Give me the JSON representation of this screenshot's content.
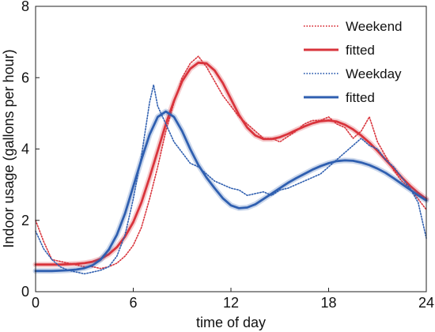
{
  "chart_data": {
    "type": "line",
    "xlabel": "time of day",
    "ylabel": "Indoor usage (gallons per hour)",
    "xlim": [
      0,
      24
    ],
    "ylim": [
      0,
      8
    ],
    "xticks": [
      0,
      6,
      12,
      18,
      24
    ],
    "yticks": [
      0,
      2,
      4,
      6,
      8
    ],
    "xtick_labels": [
      "0",
      "6",
      "12",
      "18",
      "24"
    ],
    "ytick_labels": [
      "0",
      "2",
      "4",
      "6",
      "8"
    ],
    "grid": false,
    "legend": {
      "placement": "top-right",
      "entries": [
        {
          "label": "Weekend",
          "color": "#d9343c",
          "style": "dotted"
        },
        {
          "label": "fitted",
          "color": "#d9343c",
          "style": "solid"
        },
        {
          "label": "Weekday",
          "color": "#2f5fb0",
          "style": "dotted"
        },
        {
          "label": "fitted",
          "color": "#2f5fb0",
          "style": "solid"
        }
      ]
    },
    "series": [
      {
        "name": "Weekend",
        "style": "dotted",
        "color": "#d9343c",
        "x": [
          0,
          0.5,
          1,
          1.5,
          2,
          2.5,
          3,
          3.5,
          4,
          4.5,
          5,
          5.5,
          6,
          6.5,
          7,
          7.5,
          8,
          8.5,
          9,
          9.5,
          10,
          10.5,
          11,
          11.5,
          12,
          12.5,
          13,
          13.5,
          14,
          14.5,
          15,
          15.5,
          16,
          16.5,
          17,
          17.5,
          18,
          18.5,
          19,
          19.5,
          20,
          20.5,
          21,
          21.5,
          22,
          22.5,
          23,
          23.5,
          24
        ],
        "y": [
          2.0,
          1.4,
          0.9,
          0.85,
          0.8,
          0.75,
          0.7,
          0.7,
          0.65,
          0.7,
          0.8,
          1.0,
          1.3,
          1.8,
          2.6,
          3.5,
          4.5,
          5.3,
          6.0,
          6.4,
          6.6,
          6.3,
          5.9,
          5.5,
          5.2,
          4.9,
          4.7,
          4.5,
          4.3,
          4.3,
          4.2,
          4.35,
          4.5,
          4.7,
          4.8,
          4.8,
          4.9,
          4.7,
          4.6,
          4.3,
          4.5,
          4.9,
          4.2,
          3.8,
          3.4,
          3.1,
          2.9,
          2.6,
          2.3
        ]
      },
      {
        "name": "fitted",
        "style": "solid",
        "color": "#d9343c",
        "x": [
          0,
          0.5,
          1,
          1.5,
          2,
          2.5,
          3,
          3.5,
          4,
          4.5,
          5,
          5.5,
          6,
          6.5,
          7,
          7.5,
          8,
          8.5,
          9,
          9.5,
          10,
          10.5,
          11,
          11.5,
          12,
          12.5,
          13,
          13.5,
          14,
          14.5,
          15,
          15.5,
          16,
          16.5,
          17,
          17.5,
          18,
          18.5,
          19,
          19.5,
          20,
          20.5,
          21,
          21.5,
          22,
          22.5,
          23,
          23.5,
          24
        ],
        "y": [
          0.76,
          0.76,
          0.76,
          0.76,
          0.77,
          0.78,
          0.8,
          0.84,
          0.92,
          1.05,
          1.25,
          1.55,
          1.95,
          2.5,
          3.2,
          3.95,
          4.7,
          5.35,
          5.9,
          6.25,
          6.42,
          6.4,
          6.2,
          5.85,
          5.4,
          4.95,
          4.6,
          4.38,
          4.28,
          4.28,
          4.33,
          4.42,
          4.53,
          4.63,
          4.72,
          4.78,
          4.8,
          4.77,
          4.68,
          4.55,
          4.38,
          4.18,
          3.95,
          3.7,
          3.45,
          3.2,
          2.97,
          2.77,
          2.6
        ]
      },
      {
        "name": "Weekday",
        "style": "dotted",
        "color": "#2f5fb0",
        "x": [
          0,
          0.5,
          1,
          1.5,
          2,
          2.5,
          3,
          3.5,
          4,
          4.5,
          5,
          5.5,
          6,
          6.5,
          7,
          7.25,
          7.5,
          8,
          8.5,
          9,
          9.5,
          10,
          10.5,
          11,
          11.5,
          12,
          12.5,
          13,
          13.5,
          14,
          14.5,
          15,
          15.5,
          16,
          16.5,
          17,
          17.5,
          18,
          18.5,
          19,
          19.5,
          20,
          20.5,
          21,
          21.5,
          22,
          22.5,
          23,
          23.5,
          24
        ],
        "y": [
          1.7,
          1.2,
          0.9,
          0.7,
          0.6,
          0.55,
          0.5,
          0.55,
          0.6,
          0.7,
          1.0,
          1.6,
          2.6,
          3.8,
          5.3,
          5.8,
          5.2,
          4.7,
          4.2,
          3.9,
          3.6,
          3.5,
          3.3,
          3.1,
          3.0,
          2.9,
          2.85,
          2.7,
          2.75,
          2.8,
          2.7,
          2.85,
          2.9,
          3.0,
          3.1,
          3.2,
          3.3,
          3.5,
          3.7,
          3.9,
          4.1,
          4.3,
          4.1,
          4.0,
          3.7,
          3.5,
          3.2,
          2.9,
          2.5,
          1.5
        ]
      },
      {
        "name": "fitted",
        "style": "solid",
        "color": "#2f5fb0",
        "x": [
          0,
          0.5,
          1,
          1.5,
          2,
          2.5,
          3,
          3.5,
          4,
          4.5,
          5,
          5.5,
          6,
          6.5,
          7,
          7.5,
          8,
          8.5,
          9,
          9.5,
          10,
          10.5,
          11,
          11.5,
          12,
          12.5,
          13,
          13.5,
          14,
          14.5,
          15,
          15.5,
          16,
          16.5,
          17,
          17.5,
          18,
          18.5,
          19,
          19.5,
          20,
          20.5,
          21,
          21.5,
          22,
          22.5,
          23,
          23.5,
          24
        ],
        "y": [
          0.58,
          0.58,
          0.58,
          0.59,
          0.6,
          0.62,
          0.66,
          0.74,
          0.9,
          1.18,
          1.6,
          2.2,
          2.95,
          3.7,
          4.4,
          4.9,
          5.05,
          4.9,
          4.5,
          4.0,
          3.55,
          3.2,
          2.9,
          2.62,
          2.42,
          2.34,
          2.36,
          2.45,
          2.6,
          2.75,
          2.9,
          3.05,
          3.18,
          3.3,
          3.42,
          3.52,
          3.6,
          3.66,
          3.68,
          3.67,
          3.62,
          3.55,
          3.45,
          3.33,
          3.18,
          3.02,
          2.86,
          2.7,
          2.56
        ]
      }
    ]
  }
}
